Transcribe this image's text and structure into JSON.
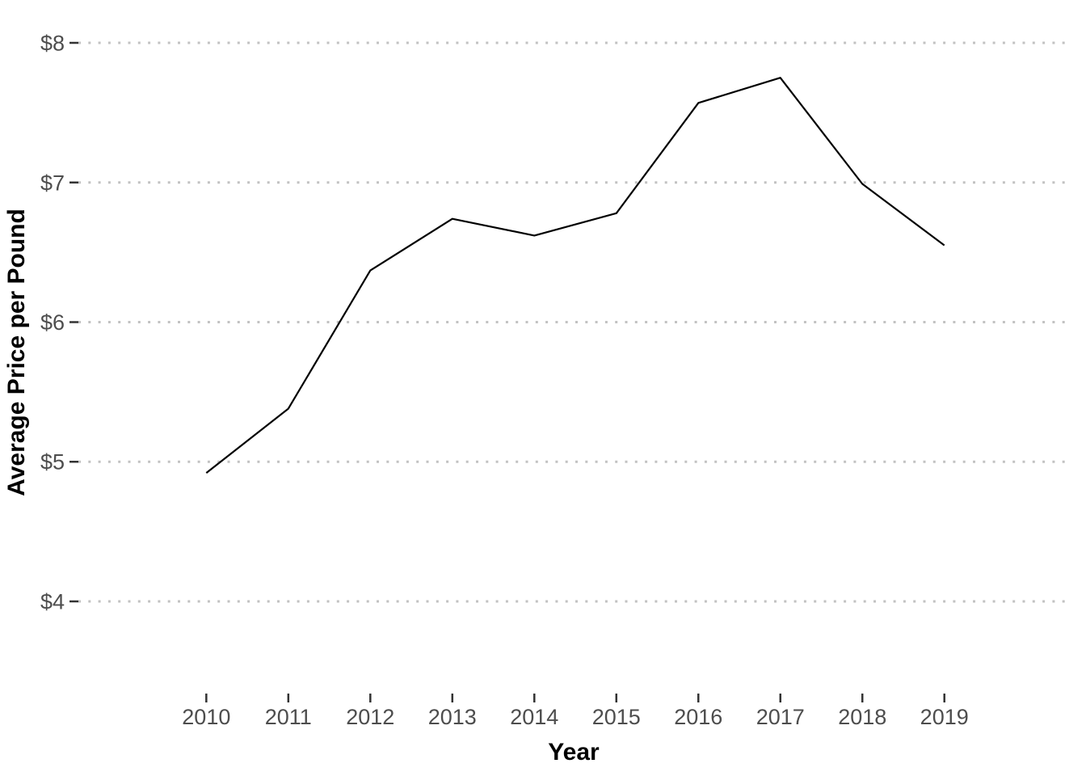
{
  "chart_data": {
    "type": "line",
    "title": "",
    "xlabel": "Year",
    "ylabel": "Average Price per Pound",
    "x": [
      2010,
      2011,
      2012,
      2013,
      2014,
      2015,
      2016,
      2017,
      2018,
      2019
    ],
    "series": [
      {
        "name": "average-price-per-pound",
        "values": [
          4.92,
          5.38,
          6.37,
          6.74,
          6.62,
          6.78,
          7.57,
          7.75,
          6.99,
          6.55
        ]
      }
    ],
    "x_tick_labels": [
      "2010",
      "2011",
      "2012",
      "2013",
      "2014",
      "2015",
      "2016",
      "2017",
      "2018",
      "2019"
    ],
    "y_ticks": [
      {
        "value": 4,
        "label": "$4"
      },
      {
        "value": 5,
        "label": "$5"
      },
      {
        "value": 6,
        "label": "$6"
      },
      {
        "value": 7,
        "label": "$7"
      },
      {
        "value": 8,
        "label": "$8"
      }
    ],
    "xlim": [
      2008.44,
      2020.53
    ],
    "ylim": [
      3.34,
      8.22
    ],
    "grid": {
      "horizontal": "dotted",
      "vertical": "none"
    },
    "legend": "none",
    "styles": {
      "line_color": "#000000",
      "line_width": 2.2,
      "grid_color": "#C2C2C2",
      "tick_color": "#333333",
      "axis_text_color": "#4D4D4D",
      "axis_title_color": "#000000",
      "background": "#FFFFFF",
      "tick_label_font_size": 27
    }
  }
}
